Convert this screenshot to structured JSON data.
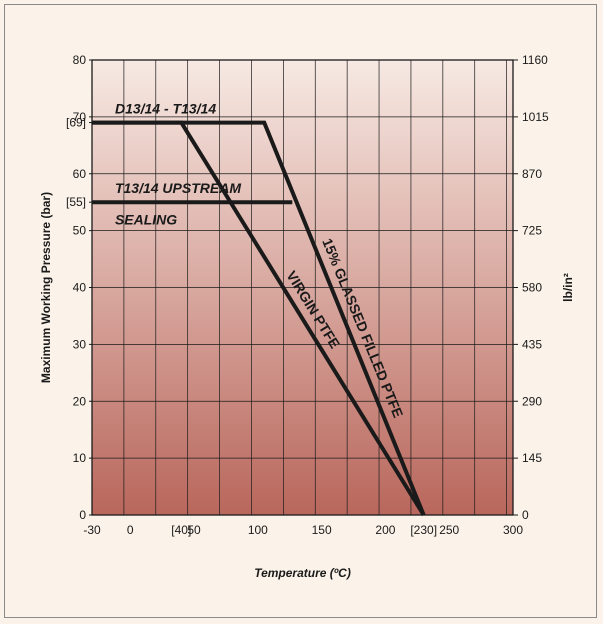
{
  "chart_data": {
    "type": "line",
    "title": "",
    "xlabel": "Temperature (ºC)",
    "ylabel": "Maximum Working Pressure (bar)",
    "ylabel_right": "lb/in²",
    "xlim": [
      -30,
      300
    ],
    "ylim": [
      0,
      80
    ],
    "x_ticks": [
      "-30",
      "0",
      "[40]",
      "50",
      "100",
      "150",
      "200",
      "[230]",
      "250",
      "300"
    ],
    "x_tick_values": [
      -30,
      0,
      40,
      50,
      100,
      150,
      200,
      230,
      250,
      300
    ],
    "y_ticks_left": [
      {
        "value": 0,
        "label": "0"
      },
      {
        "value": 10,
        "label": "10"
      },
      {
        "value": 20,
        "label": "20"
      },
      {
        "value": 30,
        "label": "30"
      },
      {
        "value": 40,
        "label": "40"
      },
      {
        "value": 50,
        "label": "50"
      },
      {
        "value": 55,
        "label": "[55]"
      },
      {
        "value": 60,
        "label": "60"
      },
      {
        "value": 69,
        "label": "[69]"
      },
      {
        "value": 70,
        "label": "70"
      },
      {
        "value": 80,
        "label": "80"
      }
    ],
    "y_ticks_right": [
      {
        "value": 0,
        "label": "0"
      },
      {
        "value": 10,
        "label": "145"
      },
      {
        "value": 20,
        "label": "290"
      },
      {
        "value": 30,
        "label": "435"
      },
      {
        "value": 40,
        "label": "580"
      },
      {
        "value": 50,
        "label": "725"
      },
      {
        "value": 60,
        "label": "870"
      },
      {
        "value": 70,
        "label": "1015"
      },
      {
        "value": 80,
        "label": "1160"
      }
    ],
    "grid": true,
    "series": [
      {
        "name": "VIRGIN PTFE",
        "x": [
          -30,
          40,
          230
        ],
        "y": [
          69,
          69,
          0
        ]
      },
      {
        "name": "15% GLASSED FILLED PTFE",
        "x": [
          -30,
          105,
          230
        ],
        "y": [
          69,
          69,
          0
        ]
      },
      {
        "name": "T13/14 UPSTREAM SEALING",
        "x": [
          -30,
          127
        ],
        "y": [
          55,
          55
        ]
      }
    ],
    "annotations": [
      {
        "text": "D13/14 - T13/14",
        "x": -12,
        "y": 71.5
      },
      {
        "text": "T13/14 UPSTREAM",
        "x": -12,
        "y": 57.5
      },
      {
        "text": "SEALING",
        "x": -12,
        "y": 52
      }
    ],
    "colors": {
      "bg_top": "#f7e9e3",
      "bg_bottom": "#b9675c",
      "line": "#1a1a1a",
      "grid": "#1a1a1a"
    }
  }
}
